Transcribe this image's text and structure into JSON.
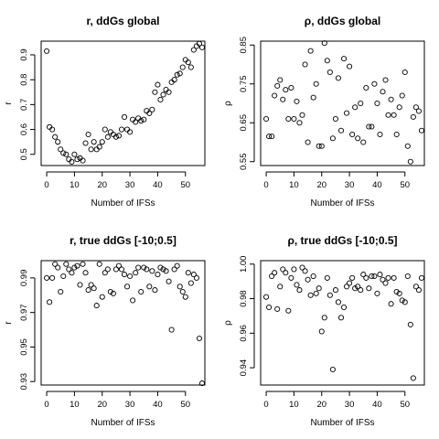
{
  "chart_data": [
    {
      "type": "scatter",
      "title": "r, ddGs global",
      "xlabel": "Number of IFSs",
      "ylabel": "r",
      "xlim": [
        -2,
        57
      ],
      "ylim": [
        0.455,
        0.955
      ],
      "xticks": [
        0,
        10,
        20,
        30,
        40,
        50
      ],
      "yticks": [
        0.5,
        0.6,
        0.7,
        0.8,
        0.9
      ],
      "grid": false,
      "legend": "none",
      "x": [
        0,
        1,
        2,
        3,
        4,
        5,
        6,
        7,
        8,
        9,
        10,
        11,
        12,
        13,
        14,
        15,
        16,
        17,
        18,
        19,
        20,
        21,
        22,
        23,
        24,
        25,
        26,
        27,
        28,
        29,
        30,
        31,
        32,
        33,
        34,
        35,
        36,
        37,
        38,
        39,
        40,
        41,
        42,
        43,
        44,
        45,
        46,
        47,
        48,
        49,
        50,
        51,
        52,
        53,
        54,
        55,
        56
      ],
      "y": [
        0.915,
        0.61,
        0.6,
        0.57,
        0.55,
        0.52,
        0.505,
        0.5,
        0.48,
        0.47,
        0.5,
        0.48,
        0.485,
        0.475,
        0.545,
        0.58,
        0.52,
        0.55,
        0.52,
        0.53,
        0.55,
        0.6,
        0.57,
        0.59,
        0.58,
        0.57,
        0.575,
        0.6,
        0.65,
        0.6,
        0.59,
        0.64,
        0.63,
        0.645,
        0.635,
        0.64,
        0.675,
        0.665,
        0.68,
        0.75,
        0.78,
        0.72,
        0.74,
        0.76,
        0.75,
        0.79,
        0.8,
        0.82,
        0.825,
        0.85,
        0.88,
        0.87,
        0.85,
        0.92,
        0.935,
        0.945,
        0.93
      ]
    },
    {
      "type": "scatter",
      "title": "ρ, ddGs global",
      "xlabel": "Number of IFSs",
      "ylabel": "ρ",
      "xlim": [
        -2,
        57
      ],
      "ylim": [
        0.54,
        0.86
      ],
      "xticks": [
        0,
        10,
        20,
        30,
        40,
        50
      ],
      "yticks": [
        0.55,
        0.65,
        0.75,
        0.85
      ],
      "grid": false,
      "legend": "none",
      "x": [
        0,
        1,
        2,
        3,
        4,
        5,
        6,
        7,
        8,
        9,
        10,
        11,
        12,
        13,
        14,
        15,
        16,
        17,
        18,
        19,
        20,
        21,
        22,
        23,
        24,
        25,
        26,
        27,
        28,
        29,
        30,
        31,
        32,
        33,
        34,
        35,
        36,
        37,
        38,
        39,
        40,
        41,
        42,
        43,
        44,
        45,
        46,
        47,
        48,
        49,
        50,
        51,
        52,
        53,
        54,
        55,
        56
      ],
      "y": [
        0.66,
        0.615,
        0.615,
        0.72,
        0.745,
        0.76,
        0.71,
        0.735,
        0.66,
        0.74,
        0.66,
        0.705,
        0.65,
        0.67,
        0.8,
        0.6,
        0.835,
        0.715,
        0.75,
        0.59,
        0.59,
        0.855,
        0.81,
        0.78,
        0.61,
        0.66,
        0.765,
        0.63,
        0.815,
        0.675,
        0.795,
        0.62,
        0.69,
        0.61,
        0.7,
        0.6,
        0.74,
        0.64,
        0.64,
        0.75,
        0.7,
        0.62,
        0.73,
        0.76,
        0.67,
        0.71,
        0.67,
        0.62,
        0.69,
        0.72,
        0.78,
        0.59,
        0.55,
        0.665,
        0.69,
        0.68,
        0.63
      ]
    },
    {
      "type": "scatter",
      "title": "r, true ddGs [-10;0.5]",
      "xlabel": "Number of IFSs",
      "ylabel": "r",
      "xlim": [
        -2,
        57
      ],
      "ylim": [
        0.928,
        1.0
      ],
      "xticks": [
        0,
        10,
        20,
        30,
        40,
        50
      ],
      "yticks": [
        0.93,
        0.95,
        0.97,
        0.99
      ],
      "grid": false,
      "legend": "none",
      "x": [
        0,
        1,
        2,
        3,
        4,
        5,
        6,
        7,
        8,
        9,
        10,
        11,
        12,
        13,
        14,
        15,
        16,
        17,
        18,
        19,
        20,
        21,
        22,
        23,
        24,
        25,
        26,
        27,
        28,
        29,
        30,
        31,
        32,
        33,
        34,
        35,
        36,
        37,
        38,
        39,
        40,
        41,
        42,
        43,
        44,
        45,
        46,
        47,
        48,
        49,
        50,
        51,
        52,
        53,
        54,
        55,
        56
      ],
      "y": [
        0.99,
        0.976,
        0.99,
        0.998,
        0.996,
        0.982,
        0.991,
        0.998,
        0.995,
        0.993,
        0.996,
        0.997,
        0.986,
        0.998,
        0.993,
        0.983,
        0.986,
        0.984,
        0.974,
        0.998,
        0.979,
        0.993,
        0.995,
        0.982,
        0.981,
        0.995,
        0.997,
        0.995,
        0.992,
        0.985,
        0.991,
        0.977,
        0.993,
        0.996,
        0.982,
        0.996,
        0.995,
        0.985,
        0.994,
        0.983,
        0.992,
        0.996,
        0.995,
        0.994,
        0.988,
        0.96,
        0.995,
        0.997,
        0.985,
        0.982,
        0.979,
        0.993,
        0.987,
        0.992,
        0.99,
        0.955,
        0.929
      ]
    },
    {
      "type": "scatter",
      "title": "ρ, true ddGs [-10;0.5]",
      "xlabel": "Number of IFSs",
      "ylabel": "ρ",
      "xlim": [
        -2,
        57
      ],
      "ylim": [
        0.93,
        1.002
      ],
      "xticks": [
        0,
        10,
        20,
        30,
        40,
        50
      ],
      "yticks": [
        0.94,
        0.96,
        0.98,
        1.0
      ],
      "ytick_labels": [
        "0.94",
        "0.96",
        "0.98",
        "1.00"
      ],
      "grid": false,
      "legend": "none",
      "x": [
        0,
        1,
        2,
        3,
        4,
        5,
        6,
        7,
        8,
        9,
        10,
        11,
        12,
        13,
        14,
        15,
        16,
        17,
        18,
        19,
        20,
        21,
        22,
        23,
        24,
        25,
        26,
        27,
        28,
        29,
        30,
        31,
        32,
        33,
        34,
        35,
        36,
        37,
        38,
        39,
        40,
        41,
        42,
        43,
        44,
        45,
        46,
        47,
        48,
        49,
        50,
        51,
        52,
        53,
        54,
        55,
        56
      ],
      "y": [
        0.981,
        0.975,
        0.993,
        0.995,
        0.974,
        0.987,
        0.997,
        0.995,
        0.973,
        0.992,
        0.997,
        0.988,
        0.985,
        0.998,
        0.996,
        0.991,
        0.982,
        0.993,
        0.983,
        0.986,
        0.961,
        0.969,
        0.992,
        0.982,
        0.939,
        0.985,
        0.978,
        0.969,
        0.975,
        0.987,
        0.989,
        0.992,
        0.986,
        0.987,
        0.985,
        0.994,
        0.992,
        0.986,
        0.993,
        0.993,
        0.983,
        0.994,
        0.991,
        0.989,
        0.992,
        0.977,
        0.992,
        0.984,
        0.983,
        0.979,
        0.978,
        0.993,
        0.965,
        0.934,
        0.987,
        0.985,
        0.992
      ]
    }
  ]
}
